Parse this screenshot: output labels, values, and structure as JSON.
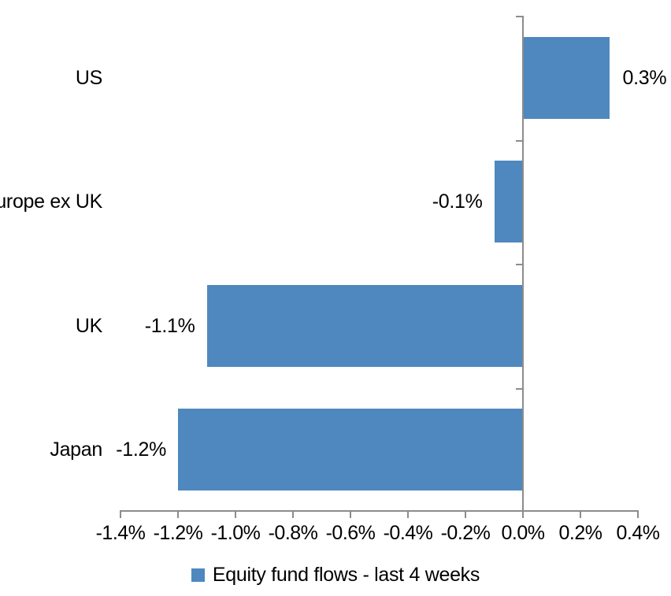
{
  "chart_data": {
    "type": "bar",
    "orientation": "horizontal",
    "title": "",
    "xlabel": "",
    "ylabel": "",
    "categories": [
      "US",
      "Europe ex UK",
      "UK",
      "Japan"
    ],
    "series": [
      {
        "name": "Equity fund flows - last 4 weeks",
        "values": [
          0.3,
          -0.1,
          -1.1,
          -1.2
        ],
        "data_labels": [
          "0.3%",
          "-0.1%",
          "-1.1%",
          "-1.2%"
        ]
      }
    ],
    "xlim": [
      -1.4,
      0.4
    ],
    "x_tick_step": 0.2,
    "x_tick_labels": [
      "-1.4%",
      "-1.2%",
      "-1.0%",
      "-0.8%",
      "-0.6%",
      "-0.4%",
      "-0.2%",
      "0.0%",
      "0.2%",
      "0.4%"
    ],
    "grid": false,
    "legend_position": "bottom",
    "colors": {
      "bar": "#4E88BF",
      "axis": "#8C8C8C",
      "text": "#000000",
      "background": "#FFFFFF"
    }
  }
}
